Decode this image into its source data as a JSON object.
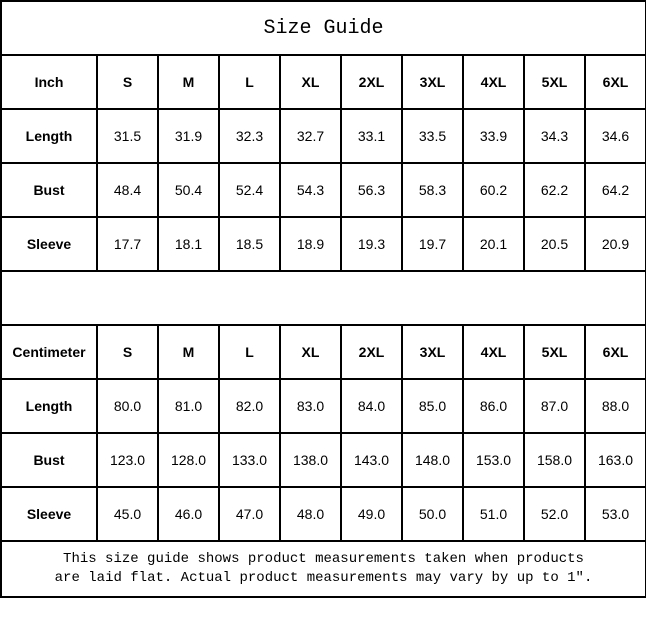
{
  "title": "Size Guide",
  "sizes": [
    "S",
    "M",
    "L",
    "XL",
    "2XL",
    "3XL",
    "4XL",
    "5XL",
    "6XL"
  ],
  "inch": {
    "unit_label": "Inch",
    "rows": [
      {
        "label": "Length",
        "values": [
          "31.5",
          "31.9",
          "32.3",
          "32.7",
          "33.1",
          "33.5",
          "33.9",
          "34.3",
          "34.6"
        ]
      },
      {
        "label": "Bust",
        "values": [
          "48.4",
          "50.4",
          "52.4",
          "54.3",
          "56.3",
          "58.3",
          "60.2",
          "62.2",
          "64.2"
        ]
      },
      {
        "label": "Sleeve",
        "values": [
          "17.7",
          "18.1",
          "18.5",
          "18.9",
          "19.3",
          "19.7",
          "20.1",
          "20.5",
          "20.9"
        ]
      }
    ]
  },
  "centimeter": {
    "unit_label": "Centimeter",
    "rows": [
      {
        "label": "Length",
        "values": [
          "80.0",
          "81.0",
          "82.0",
          "83.0",
          "84.0",
          "85.0",
          "86.0",
          "87.0",
          "88.0"
        ]
      },
      {
        "label": "Bust",
        "values": [
          "123.0",
          "128.0",
          "133.0",
          "138.0",
          "143.0",
          "148.0",
          "153.0",
          "158.0",
          "163.0"
        ]
      },
      {
        "label": "Sleeve",
        "values": [
          "45.0",
          "46.0",
          "47.0",
          "48.0",
          "49.0",
          "50.0",
          "51.0",
          "52.0",
          "53.0"
        ]
      }
    ]
  },
  "footer": {
    "line1": "This size guide shows product measurements taken when products",
    "line2": "are laid flat. Actual product measurements may vary by up to 1″."
  }
}
